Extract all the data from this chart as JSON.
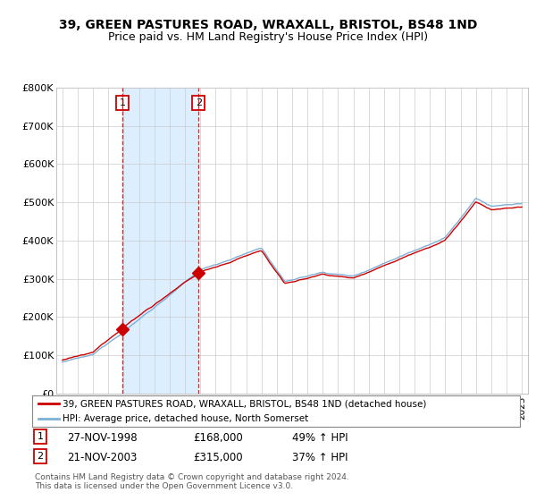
{
  "title": "39, GREEN PASTURES ROAD, WRAXALL, BRISTOL, BS48 1ND",
  "subtitle": "Price paid vs. HM Land Registry's House Price Index (HPI)",
  "title_fontsize": 10,
  "subtitle_fontsize": 9,
  "background_color": "#ffffff",
  "plot_bg_color": "#ffffff",
  "shade_color": "#ddeeff",
  "grid_color": "#cccccc",
  "red_color": "#cc0000",
  "blue_color": "#7eb0d5",
  "sale1_date_x": 1998.91,
  "sale1_price": 168000,
  "sale2_date_x": 2003.89,
  "sale2_price": 315000,
  "legend_line1": "39, GREEN PASTURES ROAD, WRAXALL, BRISTOL, BS48 1ND (detached house)",
  "legend_line2": "HPI: Average price, detached house, North Somerset",
  "table_row1": [
    "1",
    "27-NOV-1998",
    "£168,000",
    "49% ↑ HPI"
  ],
  "table_row2": [
    "2",
    "21-NOV-2003",
    "£315,000",
    "37% ↑ HPI"
  ],
  "footer": "Contains HM Land Registry data © Crown copyright and database right 2024.\nThis data is licensed under the Open Government Licence v3.0.",
  "ylim": [
    0,
    800000
  ],
  "xlim_start": 1994.6,
  "xlim_end": 2025.4
}
